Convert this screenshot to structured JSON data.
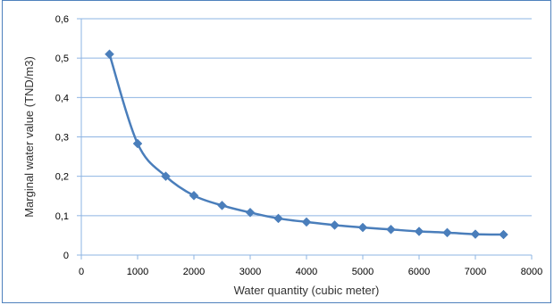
{
  "chart_data": {
    "type": "line",
    "title": "",
    "xlabel": "Water quantity (cubic meter)",
    "ylabel": "Marginal water value (TND/m3)",
    "xlim": [
      0,
      8000
    ],
    "ylim": [
      0,
      0.6
    ],
    "x_ticks": [
      0,
      1000,
      2000,
      3000,
      4000,
      5000,
      6000,
      7000,
      8000
    ],
    "y_ticks": [
      0,
      0.1,
      0.2,
      0.3,
      0.4,
      0.5,
      0.6
    ],
    "x_tick_labels": [
      "0",
      "1000",
      "2000",
      "3000",
      "4000",
      "5000",
      "6000",
      "7000",
      "8000"
    ],
    "y_tick_labels": [
      "0",
      "0,1",
      "0,2",
      "0,3",
      "0,4",
      "0,5",
      "0,6"
    ],
    "grid": "horizontal",
    "legend": "none",
    "smooth": true,
    "marker": "diamond",
    "series": [
      {
        "color": "#4a7ebb",
        "x": [
          500,
          1000,
          1500,
          2000,
          2500,
          3000,
          3500,
          4000,
          4500,
          5000,
          5500,
          6000,
          6500,
          7000,
          7500
        ],
        "y": [
          0.51,
          0.283,
          0.2,
          0.151,
          0.126,
          0.108,
          0.093,
          0.084,
          0.076,
          0.07,
          0.065,
          0.06,
          0.057,
          0.053,
          0.052
        ]
      }
    ]
  }
}
